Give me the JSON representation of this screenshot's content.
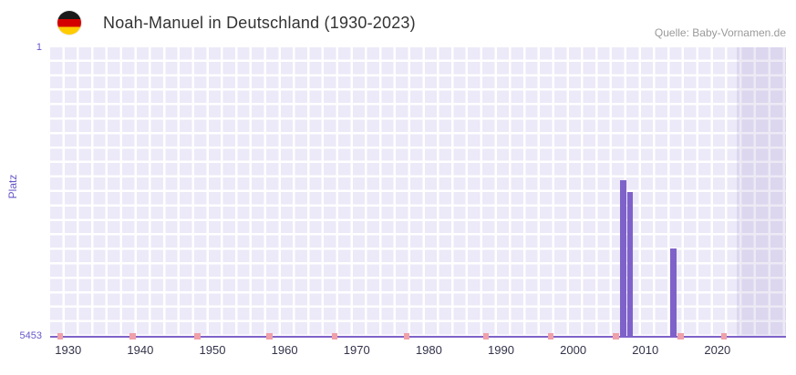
{
  "header": {
    "title": "Noah-Manuel in Deutschland (1930-2023)",
    "source": "Quelle: Baby-Vornamen.de",
    "flag_icon": "german-flag-circle"
  },
  "chart_data": {
    "type": "bar",
    "title": "Noah-Manuel in Deutschland (1930-2023)",
    "source": "Quelle: Baby-Vornamen.de",
    "xlabel": "",
    "ylabel": "Platz",
    "y_axis": {
      "top_label": "1",
      "bottom_label": "5453",
      "min": 1,
      "max": 5453,
      "inverted": true
    },
    "x_axis": {
      "min": 1928,
      "max": 2030,
      "tick_labels": [
        "1930",
        "1940",
        "1950",
        "1960",
        "1970",
        "1980",
        "1990",
        "2000",
        "2010",
        "2020"
      ]
    },
    "bars": [
      {
        "year": 2007,
        "rank": 2500
      },
      {
        "year": 2008,
        "rank": 2730
      },
      {
        "year": 2014,
        "rank": 3790
      }
    ],
    "unranked_years": [
      1929,
      1939,
      1948,
      1958,
      1967,
      1977,
      1988,
      1997,
      2006,
      2015,
      2021
    ],
    "future_band": {
      "start": 2023.2,
      "end": 2030
    },
    "legend": null,
    "grid": true,
    "colors": {
      "bar": "#7e62c9",
      "unranked_mark": "#efa0a9",
      "plot_background": "#ece9f8",
      "grid_line": "#ffffff",
      "future_band": "rgba(108,86,176,0.12)",
      "y_label": "#6657c8",
      "x_label": "#33334a",
      "title": "#333333",
      "source": "#9a9a9a"
    }
  }
}
